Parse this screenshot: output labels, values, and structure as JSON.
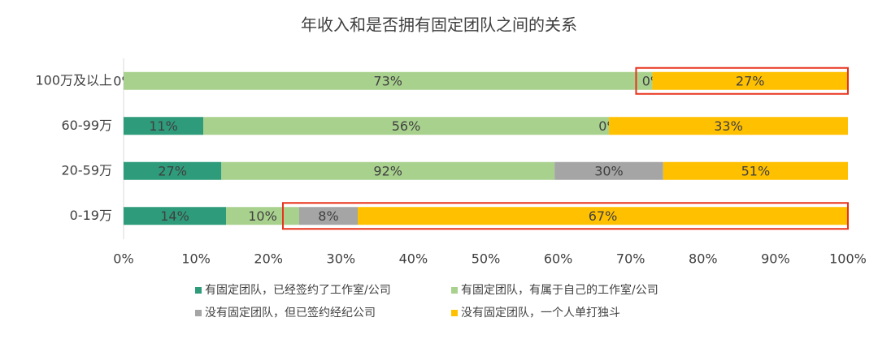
{
  "chart_data": {
    "type": "bar",
    "orientation": "horizontal",
    "stacking": "percent",
    "title": "年收入和是否拥有固定团队之间的关系",
    "categories": [
      "100万及以上",
      "60-99万",
      "20-59万",
      "0-19万"
    ],
    "series": [
      {
        "name": "有固定团队，已经签约了工作室/公司",
        "color": "#2e9b7a",
        "values": [
          0,
          11,
          27,
          14
        ],
        "value_labels": [
          "0%",
          "11%",
          "27%",
          "14%"
        ]
      },
      {
        "name": "有固定团队，有属于自己的工作室/公司",
        "color": "#a9d18e",
        "values": [
          73,
          56,
          92,
          10
        ],
        "value_labels": [
          "73%",
          "56%",
          "92%",
          "10%"
        ]
      },
      {
        "name": "没有固定团队，但已签约经纪公司",
        "color": "#a5a5a5",
        "values": [
          0,
          0,
          30,
          8
        ],
        "value_labels": [
          "0%",
          "0%",
          "30%",
          "8%"
        ]
      },
      {
        "name": "没有固定团队，一个人单打独斗",
        "color": "#ffc000",
        "values": [
          27,
          33,
          51,
          67
        ],
        "value_labels": [
          "27%",
          "33%",
          "51%",
          "67%"
        ]
      }
    ],
    "xlim": [
      0,
      100
    ],
    "xticks": [
      {
        "value": 0,
        "label": "0%"
      },
      {
        "value": 10,
        "label": "10%"
      },
      {
        "value": 20,
        "label": "20%"
      },
      {
        "value": 30,
        "label": "30%"
      },
      {
        "value": 40,
        "label": "40%"
      },
      {
        "value": 50,
        "label": "50%"
      },
      {
        "value": 60,
        "label": "60%"
      },
      {
        "value": 70,
        "label": "70%"
      },
      {
        "value": 80,
        "label": "80%"
      },
      {
        "value": 90,
        "label": "90%"
      },
      {
        "value": 100,
        "label": "100%"
      }
    ],
    "legend": "bottom"
  }
}
